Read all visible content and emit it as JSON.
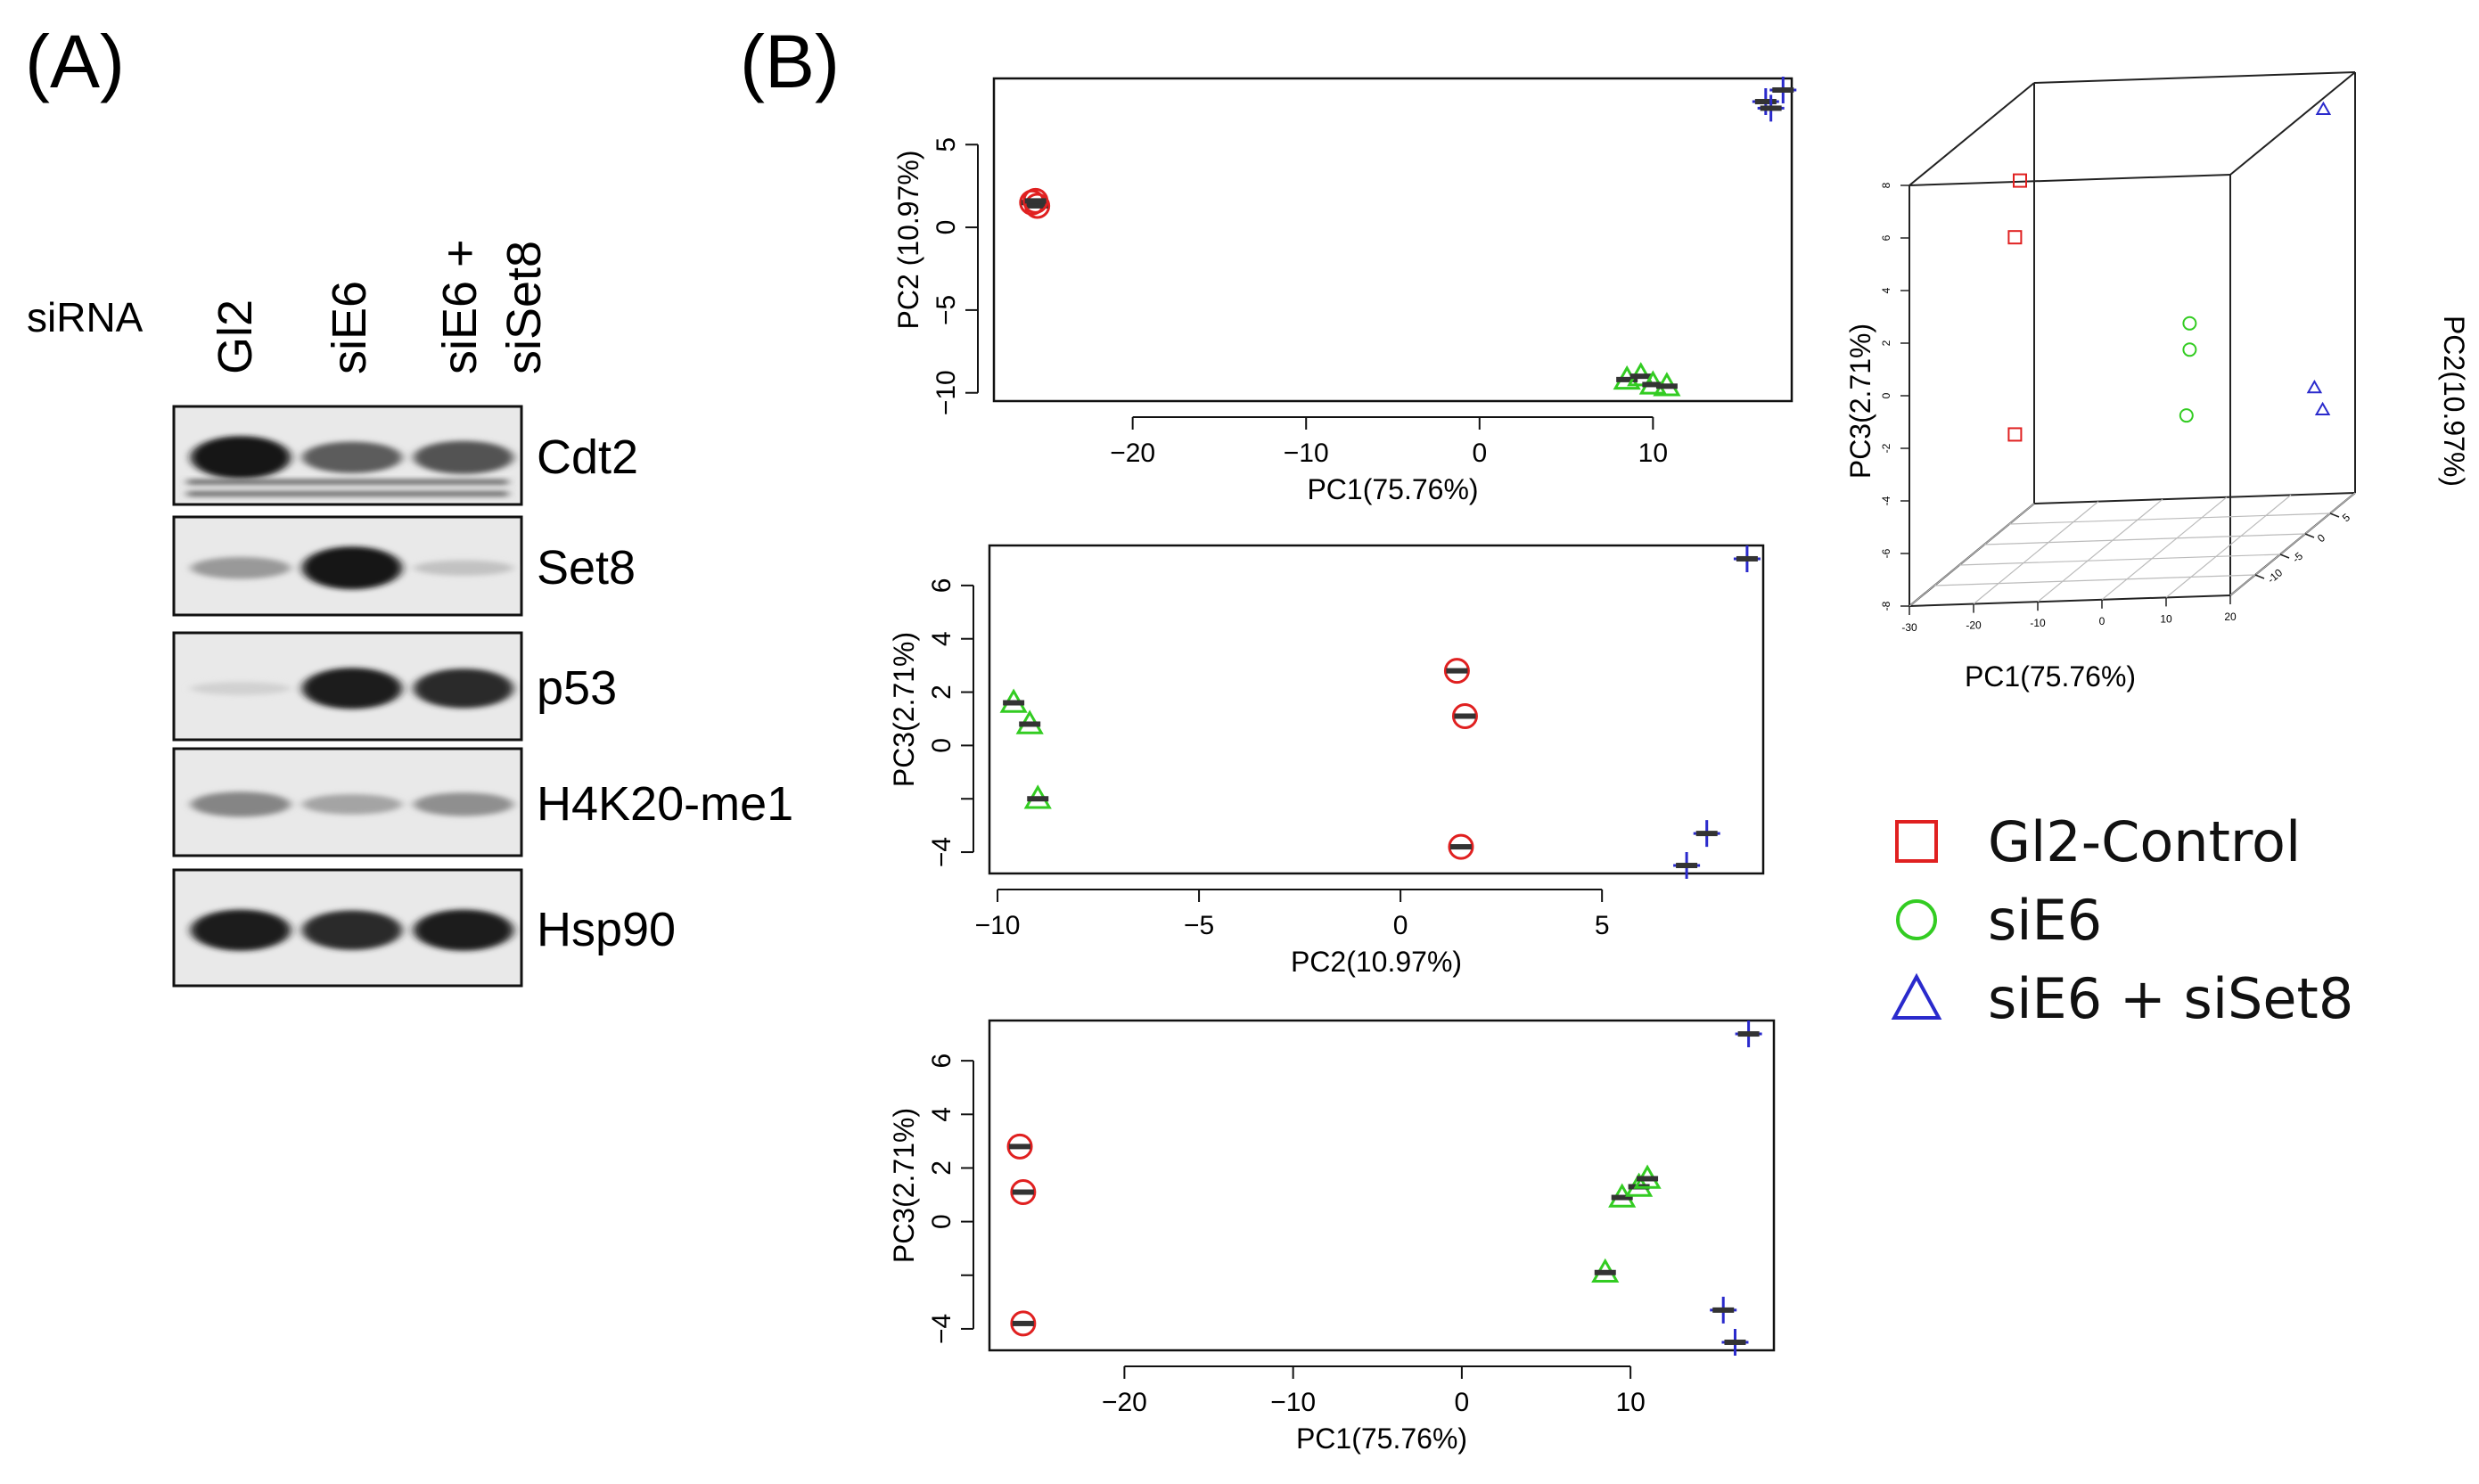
{
  "panels": {
    "a_label": "(A)",
    "b_label": "(B)"
  },
  "blot": {
    "sirna_label": "siRNA",
    "lanes": [
      [
        "Gl2"
      ],
      [
        "siE6"
      ],
      [
        "siE6 +",
        "siSet8"
      ]
    ],
    "proteins": [
      "Cdt2",
      "Set8",
      "p53",
      "H4K20-me1",
      "Hsp90"
    ],
    "intensities": [
      [
        1.0,
        0.65,
        0.7
      ],
      [
        0.35,
        1.0,
        0.15
      ],
      [
        0.08,
        0.95,
        0.9
      ],
      [
        0.45,
        0.3,
        0.4
      ],
      [
        0.95,
        0.9,
        0.95
      ]
    ]
  },
  "colors": {
    "Gl2-Control": "#e02020",
    "siE6": "#33cc22",
    "siE6 + siSet8": "#2a2acc"
  },
  "legend": [
    {
      "name": "Gl2-Control",
      "marker": "square"
    },
    {
      "name": "siE6",
      "marker": "circle"
    },
    {
      "name": "siE6 + siSet8",
      "marker": "triangle"
    }
  ],
  "chart_data": [
    {
      "type": "scatter",
      "title": "",
      "xlabel": "PC1(75.76%)",
      "ylabel": "PC2 (10.97%)",
      "xlim": [
        -28,
        18
      ],
      "ylim": [
        -10.5,
        9
      ],
      "xticks": [
        -20,
        -10,
        0,
        10
      ],
      "yticks": [
        -10,
        -5,
        0,
        5
      ],
      "series": [
        {
          "name": "Gl2-Control",
          "marker": "circle",
          "points": [
            [
              -25.8,
              1.5
            ],
            [
              -25.5,
              1.3
            ],
            [
              -25.6,
              1.6
            ]
          ]
        },
        {
          "name": "siE6",
          "marker": "triangle",
          "points": [
            [
              8.5,
              -9.2
            ],
            [
              9.3,
              -9.0
            ],
            [
              10.0,
              -9.5
            ],
            [
              10.8,
              -9.6
            ]
          ]
        },
        {
          "name": "siE6 + siSet8",
          "marker": "plus",
          "points": [
            [
              16.5,
              7.6
            ],
            [
              16.8,
              7.2
            ],
            [
              17.5,
              8.3
            ]
          ]
        }
      ]
    },
    {
      "type": "scatter",
      "title": "",
      "xlabel": "PC2(10.97%)",
      "ylabel": "PC3(2.71%)",
      "xlim": [
        -10.2,
        9
      ],
      "ylim": [
        -4.8,
        7.5
      ],
      "xticks": [
        -10,
        -5,
        0,
        5
      ],
      "yticks": [
        -4,
        -2,
        0,
        2,
        4,
        6
      ],
      "ytick_labels": [
        "−4",
        "",
        "0",
        "2",
        "4",
        "6"
      ],
      "series": [
        {
          "name": "Gl2-Control",
          "marker": "circle",
          "points": [
            [
              1.4,
              2.8
            ],
            [
              1.6,
              1.1
            ],
            [
              1.5,
              -3.8
            ]
          ]
        },
        {
          "name": "siE6",
          "marker": "triangle",
          "points": [
            [
              -9.6,
              1.6
            ],
            [
              -9.2,
              0.8
            ],
            [
              -9.0,
              -2.0
            ]
          ]
        },
        {
          "name": "siE6 + siSet8",
          "marker": "plus",
          "points": [
            [
              8.6,
              7.0
            ],
            [
              7.6,
              -3.3
            ],
            [
              7.1,
              -4.5
            ]
          ]
        }
      ]
    },
    {
      "type": "scatter",
      "title": "",
      "xlabel": "PC1(75.76%)",
      "ylabel": "PC3(2.71%)",
      "xlim": [
        -28,
        18.5
      ],
      "ylim": [
        -4.8,
        7.5
      ],
      "xticks": [
        -20,
        -10,
        0,
        10
      ],
      "yticks": [
        -4,
        -2,
        0,
        2,
        4,
        6
      ],
      "ytick_labels": [
        "−4",
        "",
        "0",
        "2",
        "4",
        "6"
      ],
      "series": [
        {
          "name": "Gl2-Control",
          "marker": "circle",
          "points": [
            [
              -26.2,
              2.8
            ],
            [
              -26.0,
              1.1
            ],
            [
              -26.0,
              -3.8
            ]
          ]
        },
        {
          "name": "siE6",
          "marker": "triangle",
          "points": [
            [
              8.5,
              -1.9
            ],
            [
              9.5,
              0.9
            ],
            [
              10.5,
              1.3
            ],
            [
              11.0,
              1.6
            ]
          ]
        },
        {
          "name": "siE6 + siSet8",
          "marker": "plus",
          "points": [
            [
              17.0,
              7.0
            ],
            [
              15.5,
              -3.3
            ],
            [
              16.2,
              -4.5
            ]
          ]
        }
      ]
    },
    {
      "type": "scatter3d",
      "title": "",
      "xlabel": "PC1(75.76%)",
      "ylabel": "PC2(10.97%)",
      "zlabel": "PC3(2.71%)",
      "xlim": [
        -30,
        20
      ],
      "ylim": [
        -15,
        10
      ],
      "zlim": [
        -8,
        8
      ],
      "xticks": [
        -30,
        -20,
        -10,
        0,
        10,
        20
      ],
      "yticks": [
        -10,
        -5,
        0,
        5
      ],
      "zticks": [
        -8,
        -6,
        -4,
        -2,
        0,
        2,
        4,
        6,
        8
      ],
      "xtick_labels": [
        "-30",
        "-20",
        "-10",
        "0",
        "10",
        "20"
      ],
      "ytick_labels": [
        "-10",
        "-5",
        "0",
        "5"
      ],
      "ztick_labels": [
        "-8",
        "-6",
        "-4",
        "-2",
        "0",
        "2",
        "4",
        "6",
        "8"
      ],
      "series": [
        {
          "name": "Gl2-Control",
          "marker": "square",
          "points": [
            [
              -26,
              2,
              5.5
            ],
            [
              -26,
              1,
              3.5
            ],
            [
              -26,
              1,
              -4
            ]
          ]
        },
        {
          "name": "siE6",
          "marker": "circle",
          "points": [
            [
              9,
              -9,
              1.5
            ],
            [
              9,
              -9,
              0.5
            ],
            [
              8.5,
              -9,
              -2
            ]
          ]
        },
        {
          "name": "siE6 + siSet8",
          "marker": "triangle",
          "points": [
            [
              17,
              7.5,
              7
            ],
            [
              16,
              7,
              -3.5
            ],
            [
              16.5,
              8,
              -4.5
            ]
          ]
        }
      ]
    }
  ]
}
